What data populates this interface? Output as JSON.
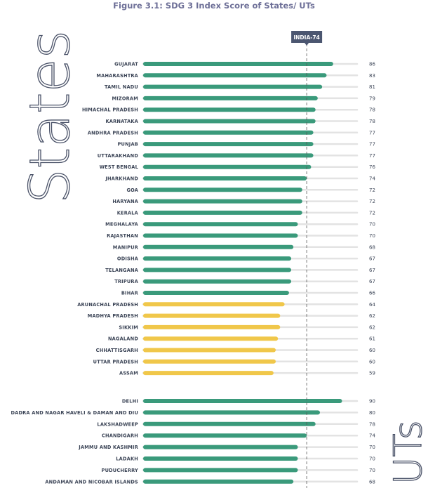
{
  "chart_data": {
    "type": "bar",
    "orientation": "horizontal",
    "title": "Figure 3.1: SDG 3 Index Score of States/ UTs",
    "xlim": [
      0,
      100
    ],
    "reference_line": {
      "label": "INDIA-74",
      "value": 74
    },
    "colors": {
      "achiever": "#3a9a7b",
      "performer": "#f0c74a",
      "track": "#e3e3e3",
      "tag": "#4b5670"
    },
    "groups": [
      {
        "name": "States",
        "categories": [
          "GUJARAT",
          "MAHARASHTRA",
          "TAMIL NADU",
          "MIZORAM",
          "HIMACHAL PRADESH",
          "KARNATAKA",
          "ANDHRA PRADESH",
          "PUNJAB",
          "UTTARAKHAND",
          "WEST BENGAL",
          "JHARKHAND",
          "GOA",
          "HARYANA",
          "KERALA",
          "MEGHALAYA",
          "RAJASTHAN",
          "MANIPUR",
          "ODISHA",
          "TELANGANA",
          "TRIPURA",
          "BIHAR",
          "ARUNACHAL PRADESH",
          "MADHYA PRADESH",
          "SIKKIM",
          "NAGALAND",
          "CHHATTISGARH",
          "UTTAR PRADESH",
          "ASSAM"
        ],
        "values": [
          86,
          83,
          81,
          79,
          78,
          78,
          77,
          77,
          77,
          76,
          74,
          72,
          72,
          72,
          70,
          70,
          68,
          67,
          67,
          67,
          66,
          64,
          62,
          62,
          61,
          60,
          60,
          59
        ]
      },
      {
        "name": "UTs",
        "categories": [
          "DELHI",
          "DADRA AND NAGAR HAVELI & DAMAN AND DIU",
          "LAKSHADWEEP",
          "CHANDIGARH",
          "JAMMU AND KASHMIR",
          "LADAKH",
          "PUDUCHERRY",
          "ANDAMAN AND NICOBAR ISLANDS"
        ],
        "values": [
          90,
          80,
          78,
          74,
          70,
          70,
          70,
          68
        ]
      }
    ]
  }
}
